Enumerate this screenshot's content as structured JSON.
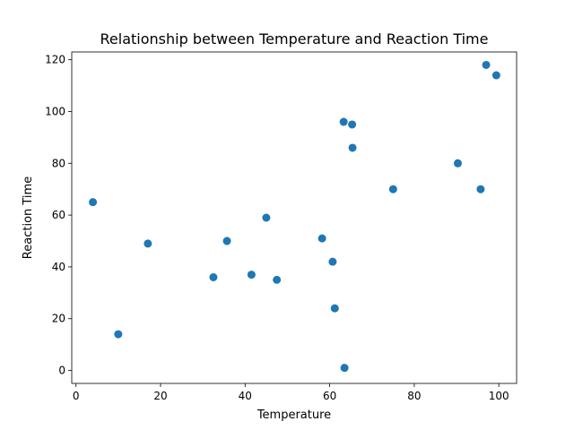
{
  "chart_data": {
    "type": "scatter",
    "title": "Relationship between Temperature and Reaction Time",
    "xlabel": "Temperature",
    "ylabel": "Reaction Time",
    "xlim": [
      -1,
      104.2
    ],
    "ylim": [
      -5,
      123
    ],
    "xticks": [
      0,
      20,
      40,
      60,
      80,
      100
    ],
    "yticks": [
      0,
      20,
      40,
      60,
      80,
      100,
      120
    ],
    "grid": false,
    "color": "#1f77b4",
    "points": [
      {
        "x": 4,
        "y": 65
      },
      {
        "x": 10,
        "y": 14
      },
      {
        "x": 17,
        "y": 49
      },
      {
        "x": 32.5,
        "y": 36
      },
      {
        "x": 35.7,
        "y": 50
      },
      {
        "x": 41.5,
        "y": 37
      },
      {
        "x": 45,
        "y": 59
      },
      {
        "x": 47.5,
        "y": 35
      },
      {
        "x": 58.2,
        "y": 51
      },
      {
        "x": 60.7,
        "y": 42
      },
      {
        "x": 61.2,
        "y": 24
      },
      {
        "x": 63.3,
        "y": 96
      },
      {
        "x": 63.5,
        "y": 1
      },
      {
        "x": 65.3,
        "y": 95
      },
      {
        "x": 65.4,
        "y": 86
      },
      {
        "x": 75,
        "y": 70
      },
      {
        "x": 90.3,
        "y": 80
      },
      {
        "x": 95.7,
        "y": 70
      },
      {
        "x": 97,
        "y": 118
      },
      {
        "x": 99.4,
        "y": 114
      }
    ]
  }
}
